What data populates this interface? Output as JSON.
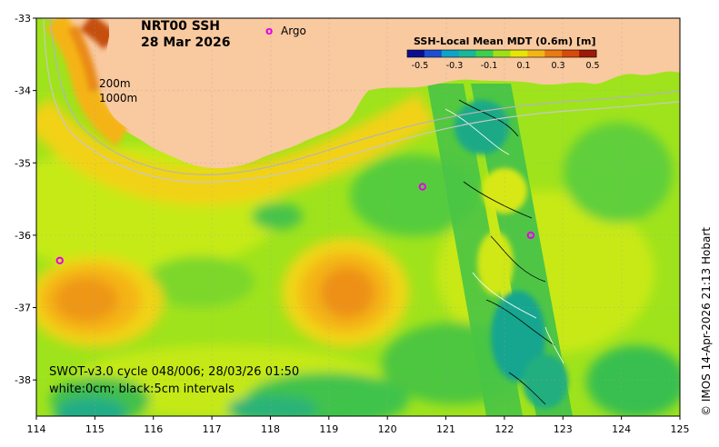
{
  "title": {
    "line1": "NRT00 SSH",
    "line2": "28 Mar 2026"
  },
  "legend": {
    "argo_marker": "o",
    "argo_label": "Argo"
  },
  "depth_labels": [
    "200m",
    "1000m"
  ],
  "colorbar": {
    "title": "SSH-Local Mean MDT (0.6m) [m]",
    "ticks": [
      "-0.5",
      "-0.3",
      "-0.1",
      "0.1",
      "0.3",
      "0.5"
    ],
    "colors": [
      "#0b0f8f",
      "#1c4fcf",
      "#0fa3c8",
      "#17b79a",
      "#3fcf4f",
      "#9ee018",
      "#e8e40a",
      "#f3b516",
      "#ea7a12",
      "#d64a0c",
      "#9c1a08"
    ]
  },
  "swot_note": {
    "line1": "SWOT-v3.0 cycle 048/006; 28/03/26 01:50",
    "line2": "white:0cm; black:5cm intervals"
  },
  "credit": "© IMOS 14-Apr-2026 21:13 Hobart",
  "axes": {
    "x_ticks": [
      "114",
      "115",
      "116",
      "117",
      "118",
      "119",
      "120",
      "121",
      "122",
      "123",
      "124",
      "125"
    ],
    "y_ticks": [
      "-33",
      "-34",
      "-35",
      "-36",
      "-37",
      "-38"
    ]
  },
  "map_data": {
    "lon_range": [
      114,
      125
    ],
    "lat_range": [
      -38.5,
      -33
    ],
    "argo_floats": [
      {
        "lon": 114.4,
        "lat": -36.35
      },
      {
        "lon": 120.6,
        "lat": -35.33
      },
      {
        "lon": 122.45,
        "lat": -36.0
      }
    ],
    "colors": {
      "land": "#f9c9a0",
      "ocean_base": "#9be31e",
      "argo": "#e600e6"
    }
  }
}
